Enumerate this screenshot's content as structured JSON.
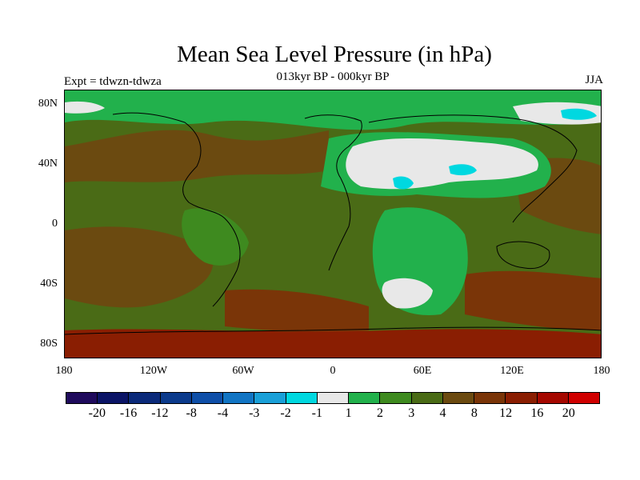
{
  "title": "Mean Sea Level Pressure (in hPa)",
  "left_label": "Expt = tdwzn-tdwza",
  "center_label": "013kyr BP - 000kyr BP",
  "right_label": "JJA",
  "lat_ticks": [
    "80N",
    "40N",
    "0",
    "40S",
    "80S"
  ],
  "lon_ticks": [
    "180",
    "120W",
    "60W",
    "0",
    "60E",
    "120E",
    "180"
  ],
  "colorbar": {
    "colors": [
      "#1f0a5c",
      "#0b1466",
      "#0b2a7a",
      "#0c3b8c",
      "#0f4fa8",
      "#1275c4",
      "#1aa0d8",
      "#00d8e0",
      "#e8e8e8",
      "#22b14c",
      "#3e8a1f",
      "#4a6b16",
      "#6b4a10",
      "#7a3508",
      "#8a1e02",
      "#a50800",
      "#d00000"
    ],
    "labels": [
      "-20",
      "-16",
      "-12",
      "-8",
      "-4",
      "-3",
      "-2",
      "-1",
      "1",
      "2",
      "3",
      "4",
      "8",
      "12",
      "16",
      "20"
    ]
  },
  "map_colors": {
    "base": "#4a6b16",
    "light_green": "#3e8a1f",
    "green": "#22b14c",
    "brown": "#6b4a10",
    "dark_brown": "#7a3508",
    "red_brown": "#8a1e02",
    "white": "#e8e8e8",
    "cyan": "#00d8e0"
  }
}
